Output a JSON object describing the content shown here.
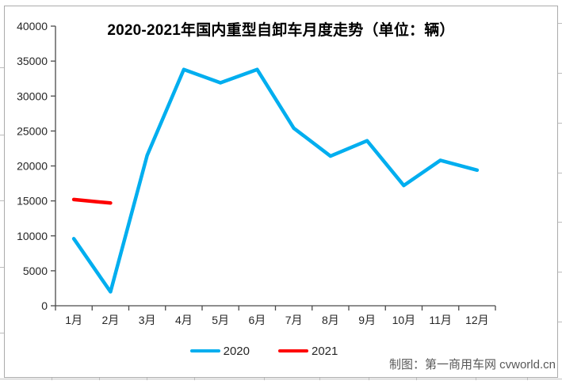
{
  "watermark": "制图：第一商用车网 cvworld.cn",
  "chart_data": {
    "type": "line",
    "title": "2020-2021年国内重型自卸车月度走势（单位：辆）",
    "categories": [
      "1月",
      "2月",
      "3月",
      "4月",
      "5月",
      "6月",
      "7月",
      "8月",
      "9月",
      "10月",
      "11月",
      "12月"
    ],
    "series": [
      {
        "name": "2020",
        "color": "#00AEEF",
        "values": [
          9600,
          2000,
          21500,
          33800,
          31900,
          33800,
          25400,
          21400,
          23600,
          17200,
          20800,
          19400
        ]
      },
      {
        "name": "2021",
        "color": "#FE0000",
        "values": [
          15200,
          14700,
          null,
          null,
          null,
          null,
          null,
          null,
          null,
          null,
          null,
          null
        ]
      }
    ],
    "xlabel": "",
    "ylabel": "",
    "ylim": [
      0,
      40000
    ],
    "ytick_step": 5000,
    "grid": false,
    "legend_position": "bottom"
  }
}
